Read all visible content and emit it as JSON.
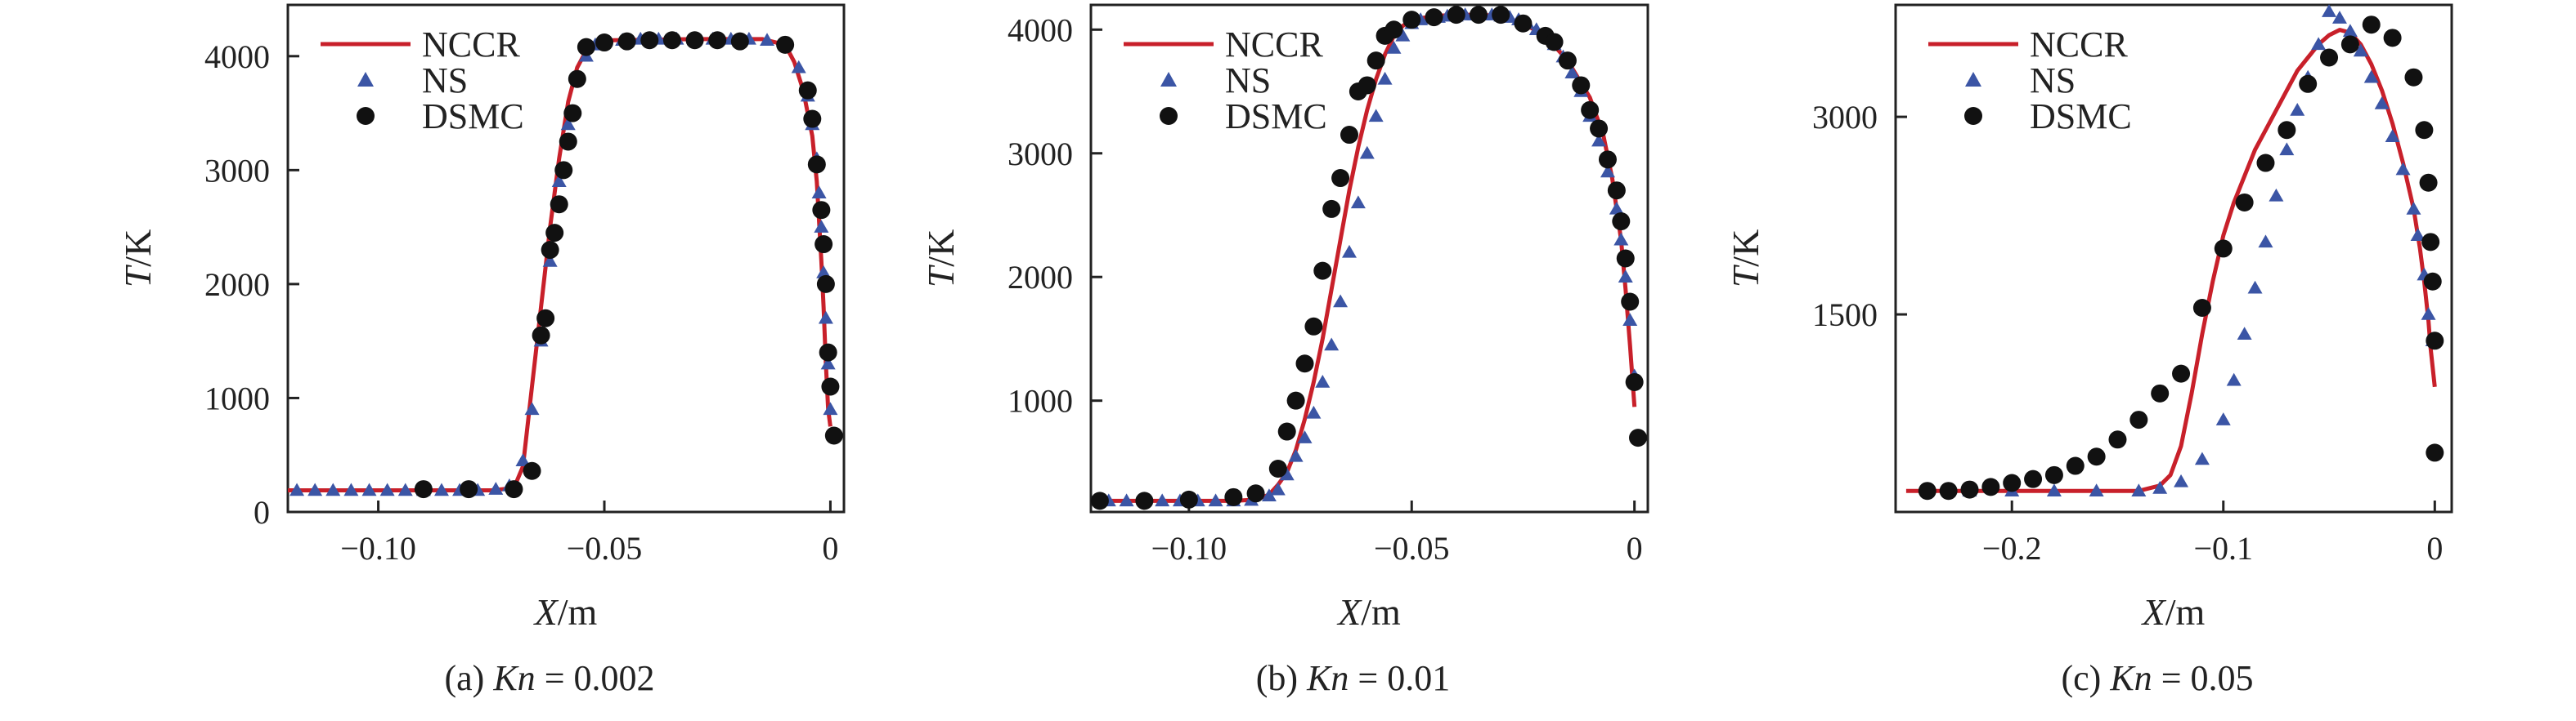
{
  "figure": {
    "colors": {
      "nccr": "#c8202a",
      "ns": "#3b55a5",
      "dsmc": "#111111",
      "frame": "#222222"
    }
  },
  "chart_data": [
    {
      "type": "line",
      "panel": "a",
      "caption": {
        "prefix": "(a) ",
        "var": "Kn",
        "suffix": " = 0.002"
      },
      "xlabel": {
        "var": "X",
        "unit": "/m"
      },
      "ylabel": {
        "var": "T",
        "unit": "/K"
      },
      "xlim": [
        -0.12,
        0.003
      ],
      "ylim": [
        0,
        4450
      ],
      "xticks": [
        -0.1,
        -0.05,
        0
      ],
      "xtick_labels": [
        "−0.10",
        "−0.05",
        "0"
      ],
      "yticks": [
        0,
        1000,
        2000,
        3000,
        4000
      ],
      "ytick_labels": [
        "0",
        "1000",
        "2000",
        "3000",
        "4000"
      ],
      "legend": [
        "NCCR",
        "NS",
        "DSMC"
      ],
      "legend_position": "top-left",
      "series": [
        {
          "name": "NCCR",
          "style": "line",
          "x": [
            -0.12,
            -0.075,
            -0.07,
            -0.068,
            -0.066,
            -0.064,
            -0.062,
            -0.06,
            -0.058,
            -0.056,
            -0.054,
            -0.052,
            -0.05,
            -0.048,
            -0.03,
            -0.015,
            -0.01,
            -0.008,
            -0.006,
            -0.004,
            -0.003,
            -0.002,
            -0.0015,
            -0.001,
            -0.0005,
            0
          ],
          "y": [
            190,
            190,
            210,
            400,
            1100,
            1800,
            2500,
            3100,
            3600,
            3900,
            4050,
            4110,
            4130,
            4140,
            4150,
            4150,
            4100,
            3950,
            3700,
            3300,
            2900,
            2200,
            1800,
            1300,
            900,
            750
          ]
        },
        {
          "name": "NS",
          "style": "triangle",
          "x": [
            -0.118,
            -0.114,
            -0.11,
            -0.106,
            -0.102,
            -0.098,
            -0.094,
            -0.09,
            -0.086,
            -0.082,
            -0.078,
            -0.074,
            -0.071,
            -0.068,
            -0.066,
            -0.064,
            -0.062,
            -0.06,
            -0.058,
            -0.056,
            -0.054,
            -0.052,
            -0.05,
            -0.046,
            -0.042,
            -0.038,
            -0.034,
            -0.03,
            -0.026,
            -0.022,
            -0.018,
            -0.014,
            -0.01,
            -0.007,
            -0.005,
            -0.004,
            -0.003,
            -0.0025,
            -0.002,
            -0.0015,
            -0.001,
            -0.0005,
            0
          ],
          "y": [
            190,
            190,
            190,
            190,
            190,
            190,
            190,
            190,
            190,
            190,
            190,
            200,
            230,
            450,
            900,
            1500,
            2200,
            2900,
            3400,
            3800,
            4000,
            4100,
            4130,
            4140,
            4150,
            4150,
            4150,
            4150,
            4150,
            4150,
            4150,
            4140,
            4100,
            3900,
            3650,
            3400,
            3100,
            2800,
            2500,
            2100,
            1700,
            1300,
            900
          ]
        },
        {
          "name": "DSMC",
          "style": "circle",
          "x": [
            -0.09,
            -0.08,
            -0.07,
            -0.066,
            -0.064,
            -0.063,
            -0.062,
            -0.061,
            -0.06,
            -0.059,
            -0.058,
            -0.057,
            -0.056,
            -0.054,
            -0.05,
            -0.045,
            -0.04,
            -0.035,
            -0.03,
            -0.025,
            -0.02,
            -0.01,
            -0.005,
            -0.004,
            -0.003,
            -0.002,
            -0.0015,
            -0.001,
            -0.0005,
            0
          ],
          "y": [
            200,
            200,
            200,
            360,
            1550,
            1700,
            2300,
            2450,
            2700,
            3000,
            3250,
            3500,
            3800,
            4080,
            4120,
            4130,
            4140,
            4140,
            4140,
            4140,
            4130,
            4100,
            3700,
            3450,
            3050,
            2650,
            2350,
            2000,
            1400,
            1100
          ]
        },
        {
          "name": "DSMC-tail",
          "style": "circle",
          "x": [
            0.0008
          ],
          "y": [
            670
          ]
        }
      ]
    },
    {
      "type": "line",
      "panel": "b",
      "caption": {
        "prefix": "(b) ",
        "var": "Kn",
        "suffix": " = 0.01"
      },
      "xlabel": {
        "var": "X",
        "unit": "/m"
      },
      "ylabel": {
        "var": "T",
        "unit": "/K"
      },
      "xlim": [
        -0.122,
        0.003
      ],
      "ylim": [
        100,
        4200
      ],
      "xticks": [
        -0.1,
        -0.05,
        0
      ],
      "xtick_labels": [
        "−0.10",
        "−0.05",
        "0"
      ],
      "yticks": [
        1000,
        2000,
        3000,
        4000
      ],
      "ytick_labels": [
        "1000",
        "2000",
        "3000",
        "4000"
      ],
      "legend": [
        "NCCR",
        "NS",
        "DSMC"
      ],
      "legend_position": "top-left",
      "series": [
        {
          "name": "NCCR",
          "style": "line",
          "x": [
            -0.12,
            -0.09,
            -0.085,
            -0.082,
            -0.08,
            -0.078,
            -0.076,
            -0.074,
            -0.072,
            -0.07,
            -0.068,
            -0.066,
            -0.064,
            -0.062,
            -0.06,
            -0.058,
            -0.056,
            -0.054,
            -0.052,
            -0.05,
            -0.045,
            -0.04,
            -0.035,
            -0.03,
            -0.025,
            -0.02,
            -0.015,
            -0.01,
            -0.007,
            -0.005,
            -0.003,
            -0.002,
            -0.001,
            0
          ],
          "y": [
            190,
            190,
            200,
            240,
            320,
            420,
            600,
            850,
            1150,
            1500,
            1900,
            2300,
            2700,
            3050,
            3350,
            3600,
            3800,
            3950,
            4030,
            4080,
            4110,
            4120,
            4120,
            4110,
            4050,
            3950,
            3750,
            3450,
            3150,
            2800,
            2300,
            1900,
            1450,
            950
          ]
        },
        {
          "name": "NS",
          "style": "triangle",
          "x": [
            -0.118,
            -0.114,
            -0.11,
            -0.106,
            -0.102,
            -0.098,
            -0.094,
            -0.09,
            -0.086,
            -0.082,
            -0.08,
            -0.078,
            -0.076,
            -0.074,
            -0.072,
            -0.07,
            -0.068,
            -0.066,
            -0.064,
            -0.062,
            -0.06,
            -0.058,
            -0.056,
            -0.054,
            -0.052,
            -0.05,
            -0.048,
            -0.046,
            -0.044,
            -0.042,
            -0.04,
            -0.038,
            -0.036,
            -0.034,
            -0.032,
            -0.03,
            -0.028,
            -0.026,
            -0.024,
            -0.022,
            -0.02,
            -0.018,
            -0.016,
            -0.014,
            -0.012,
            -0.01,
            -0.008,
            -0.006,
            -0.004,
            -0.003,
            -0.002,
            -0.001,
            0
          ],
          "y": [
            190,
            190,
            190,
            190,
            190,
            190,
            190,
            190,
            195,
            230,
            280,
            400,
            550,
            700,
            900,
            1150,
            1450,
            1800,
            2200,
            2600,
            3000,
            3300,
            3600,
            3850,
            3950,
            4050,
            4080,
            4090,
            4100,
            4110,
            4110,
            4120,
            4120,
            4120,
            4120,
            4110,
            4100,
            4080,
            4050,
            4000,
            3950,
            3880,
            3780,
            3650,
            3500,
            3300,
            3100,
            2850,
            2550,
            2300,
            2000,
            1650,
            1200
          ]
        },
        {
          "name": "DSMC",
          "style": "circle",
          "x": [
            -0.12,
            -0.11,
            -0.1,
            -0.09,
            -0.085,
            -0.08,
            -0.078,
            -0.076,
            -0.074,
            -0.072,
            -0.07,
            -0.068,
            -0.066,
            -0.064,
            -0.062,
            -0.06,
            -0.058,
            -0.056,
            -0.054,
            -0.05,
            -0.045,
            -0.04,
            -0.035,
            -0.03,
            -0.025,
            -0.02,
            -0.018,
            -0.015,
            -0.012,
            -0.01,
            -0.008,
            -0.006,
            -0.004,
            -0.003,
            -0.002,
            -0.001,
            0
          ],
          "y": [
            190,
            190,
            200,
            220,
            250,
            450,
            750,
            1000,
            1300,
            1600,
            2050,
            2550,
            2800,
            3150,
            3500,
            3550,
            3750,
            3950,
            4000,
            4080,
            4100,
            4120,
            4120,
            4120,
            4050,
            3950,
            3900,
            3750,
            3550,
            3350,
            3200,
            2950,
            2700,
            2450,
            2150,
            1800,
            1150
          ]
        },
        {
          "name": "DSMC-tail",
          "style": "circle",
          "x": [
            0.0008
          ],
          "y": [
            700
          ]
        }
      ]
    },
    {
      "type": "line",
      "panel": "c",
      "caption": {
        "prefix": "(c) ",
        "var": "Kn",
        "suffix": " = 0.05"
      },
      "xlabel": {
        "var": "X",
        "unit": "/m"
      },
      "ylabel": {
        "var": "T",
        "unit": "/K"
      },
      "xlim": [
        -0.255,
        0.008
      ],
      "ylim": [
        0,
        3850
      ],
      "xticks": [
        -0.2,
        -0.1,
        0
      ],
      "xtick_labels": [
        "−0.2",
        "−0.1",
        "0"
      ],
      "yticks": [
        1500,
        3000
      ],
      "ytick_labels": [
        "1500",
        "3000"
      ],
      "legend": [
        "NCCR",
        "NS",
        "DSMC"
      ],
      "legend_position": "top-left",
      "series": [
        {
          "name": "NCCR",
          "style": "line",
          "x": [
            -0.25,
            -0.14,
            -0.13,
            -0.125,
            -0.12,
            -0.115,
            -0.11,
            -0.105,
            -0.1,
            -0.095,
            -0.09,
            -0.085,
            -0.08,
            -0.075,
            -0.07,
            -0.065,
            -0.06,
            -0.055,
            -0.05,
            -0.045,
            -0.04,
            -0.035,
            -0.03,
            -0.025,
            -0.02,
            -0.015,
            -0.01,
            -0.007,
            -0.005,
            -0.003,
            -0.002,
            0
          ],
          "y": [
            160,
            160,
            200,
            280,
            500,
            900,
            1350,
            1750,
            2100,
            2350,
            2550,
            2750,
            2900,
            3050,
            3200,
            3350,
            3450,
            3550,
            3620,
            3660,
            3640,
            3550,
            3400,
            3200,
            2950,
            2650,
            2300,
            2000,
            1750,
            1450,
            1250,
            950
          ]
        },
        {
          "name": "NS",
          "style": "triangle",
          "x": [
            -0.22,
            -0.2,
            -0.18,
            -0.16,
            -0.14,
            -0.13,
            -0.12,
            -0.11,
            -0.1,
            -0.095,
            -0.09,
            -0.085,
            -0.08,
            -0.075,
            -0.07,
            -0.065,
            -0.06,
            -0.055,
            -0.05,
            -0.045,
            -0.04,
            -0.035,
            -0.03,
            -0.025,
            -0.02,
            -0.015,
            -0.01,
            -0.008,
            -0.005,
            -0.003,
            -0.001
          ],
          "y": [
            160,
            160,
            160,
            160,
            160,
            180,
            230,
            400,
            700,
            1000,
            1350,
            1700,
            2050,
            2400,
            2750,
            3050,
            3300,
            3550,
            3800,
            3750,
            3650,
            3500,
            3300,
            3100,
            2850,
            2600,
            2300,
            2100,
            1800,
            1500,
            1300
          ]
        },
        {
          "name": "DSMC",
          "style": "circle",
          "x": [
            -0.24,
            -0.23,
            -0.22,
            -0.21,
            -0.2,
            -0.19,
            -0.18,
            -0.17,
            -0.16,
            -0.15,
            -0.14,
            -0.13,
            -0.12,
            -0.11,
            -0.1,
            -0.09,
            -0.08,
            -0.07,
            -0.06,
            -0.05,
            -0.04,
            -0.03,
            -0.02,
            -0.01,
            -0.005,
            -0.003,
            -0.002,
            -0.001,
            0
          ],
          "y": [
            160,
            160,
            170,
            190,
            220,
            250,
            280,
            350,
            420,
            550,
            700,
            900,
            1050,
            1550,
            2000,
            2350,
            2650,
            2900,
            3250,
            3450,
            3550,
            3700,
            3600,
            3300,
            2900,
            2500,
            2050,
            1750,
            1300
          ]
        },
        {
          "name": "DSMC-tail",
          "style": "circle",
          "x": [
            0.0
          ],
          "y": [
            450
          ]
        }
      ]
    }
  ]
}
